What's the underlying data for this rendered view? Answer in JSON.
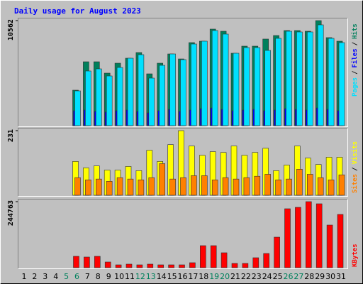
{
  "chart_data": [
    {
      "type": "bar",
      "title": "Daily usage for August 2023",
      "ylim": [
        0,
        10562
      ],
      "yticks": [
        10562
      ],
      "legend_separator": "/",
      "series": [
        {
          "name": "Hits",
          "color": "#00805C",
          "values": [
            0,
            0,
            0,
            0,
            0,
            3568,
            6423,
            6423,
            5281,
            6280,
            6780,
            7351,
            5210,
            6280,
            7208,
            6708,
            8350,
            8493,
            9706,
            9492,
            7279,
            7993,
            7993,
            8707,
            9063,
            9563,
            9563,
            9492,
            10562,
            8850,
            8493
          ]
        },
        {
          "name": "Files",
          "color": "#0000FF",
          "values": [
            0,
            0,
            0,
            0,
            0,
            1500,
            1570,
            1430,
            1360,
            1500,
            1570,
            1430,
            1290,
            1500,
            1640,
            1430,
            1570,
            1710,
            1780,
            1640,
            1500,
            1570,
            1640,
            1500,
            1570,
            1710,
            1640,
            1570,
            1780,
            1640,
            1500
          ]
        },
        {
          "name": "Pages",
          "color": "#00E0FF",
          "values": [
            0,
            0,
            0,
            0,
            0,
            3497,
            5495,
            5709,
            4996,
            5852,
            6780,
            7137,
            4781,
            6066,
            7208,
            6637,
            8207,
            8493,
            9563,
            9206,
            7279,
            7850,
            7850,
            7565,
            8778,
            9492,
            9420,
            9420,
            10134,
            8778,
            8350
          ]
        }
      ]
    },
    {
      "type": "bar",
      "ylim": [
        0,
        231
      ],
      "yticks": [
        231
      ],
      "legend_separator": "/",
      "series": [
        {
          "name": "Visits",
          "color": "#FFFF00",
          "values": [
            0,
            0,
            0,
            0,
            0,
            121,
            98,
            105,
            90,
            90,
            103,
            88,
            161,
            121,
            181,
            231,
            176,
            143,
            156,
            153,
            176,
            143,
            153,
            168,
            88,
            108,
            176,
            133,
            110,
            136,
            136
          ]
        },
        {
          "name": "Sites",
          "color": "#FF8000",
          "values": [
            0,
            0,
            0,
            0,
            0,
            63,
            55,
            58,
            50,
            63,
            58,
            55,
            63,
            113,
            58,
            63,
            70,
            70,
            55,
            63,
            58,
            63,
            68,
            75,
            55,
            58,
            93,
            75,
            63,
            55,
            73
          ]
        }
      ]
    },
    {
      "type": "bar",
      "ylim": [
        0,
        244763
      ],
      "yticks": [
        244763
      ],
      "categories": [
        "1",
        "2",
        "3",
        "4",
        "5",
        "6",
        "7",
        "8",
        "9",
        "10",
        "11",
        "12",
        "13",
        "14",
        "15",
        "16",
        "17",
        "18",
        "19",
        "20",
        "21",
        "22",
        "23",
        "24",
        "25",
        "26",
        "27",
        "28",
        "29",
        "30",
        "31"
      ],
      "label_colors": [
        "#000000",
        "#000000",
        "#000000",
        "#000000",
        "#00805C",
        "#00805C",
        "#000000",
        "#000000",
        "#000000",
        "#000000",
        "#000000",
        "#00805C",
        "#00805C",
        "#000000",
        "#000000",
        "#000000",
        "#000000",
        "#000000",
        "#00805C",
        "#00805C",
        "#000000",
        "#000000",
        "#000000",
        "#000000",
        "#000000",
        "#00805C",
        "#00805C",
        "#000000",
        "#000000",
        "#000000",
        "#000000"
      ],
      "series": [
        {
          "name": "KBytes",
          "color": "#FF0000",
          "values": [
            0,
            0,
            0,
            0,
            0,
            42110,
            39478,
            42110,
            21055,
            10527,
            13159,
            10527,
            13159,
            10527,
            10527,
            10527,
            18423,
            81588,
            81588,
            55269,
            15791,
            15791,
            36846,
            52637,
            113170,
            218444,
            223707,
            244763,
            236866,
            157912,
            197390
          ]
        }
      ]
    }
  ]
}
